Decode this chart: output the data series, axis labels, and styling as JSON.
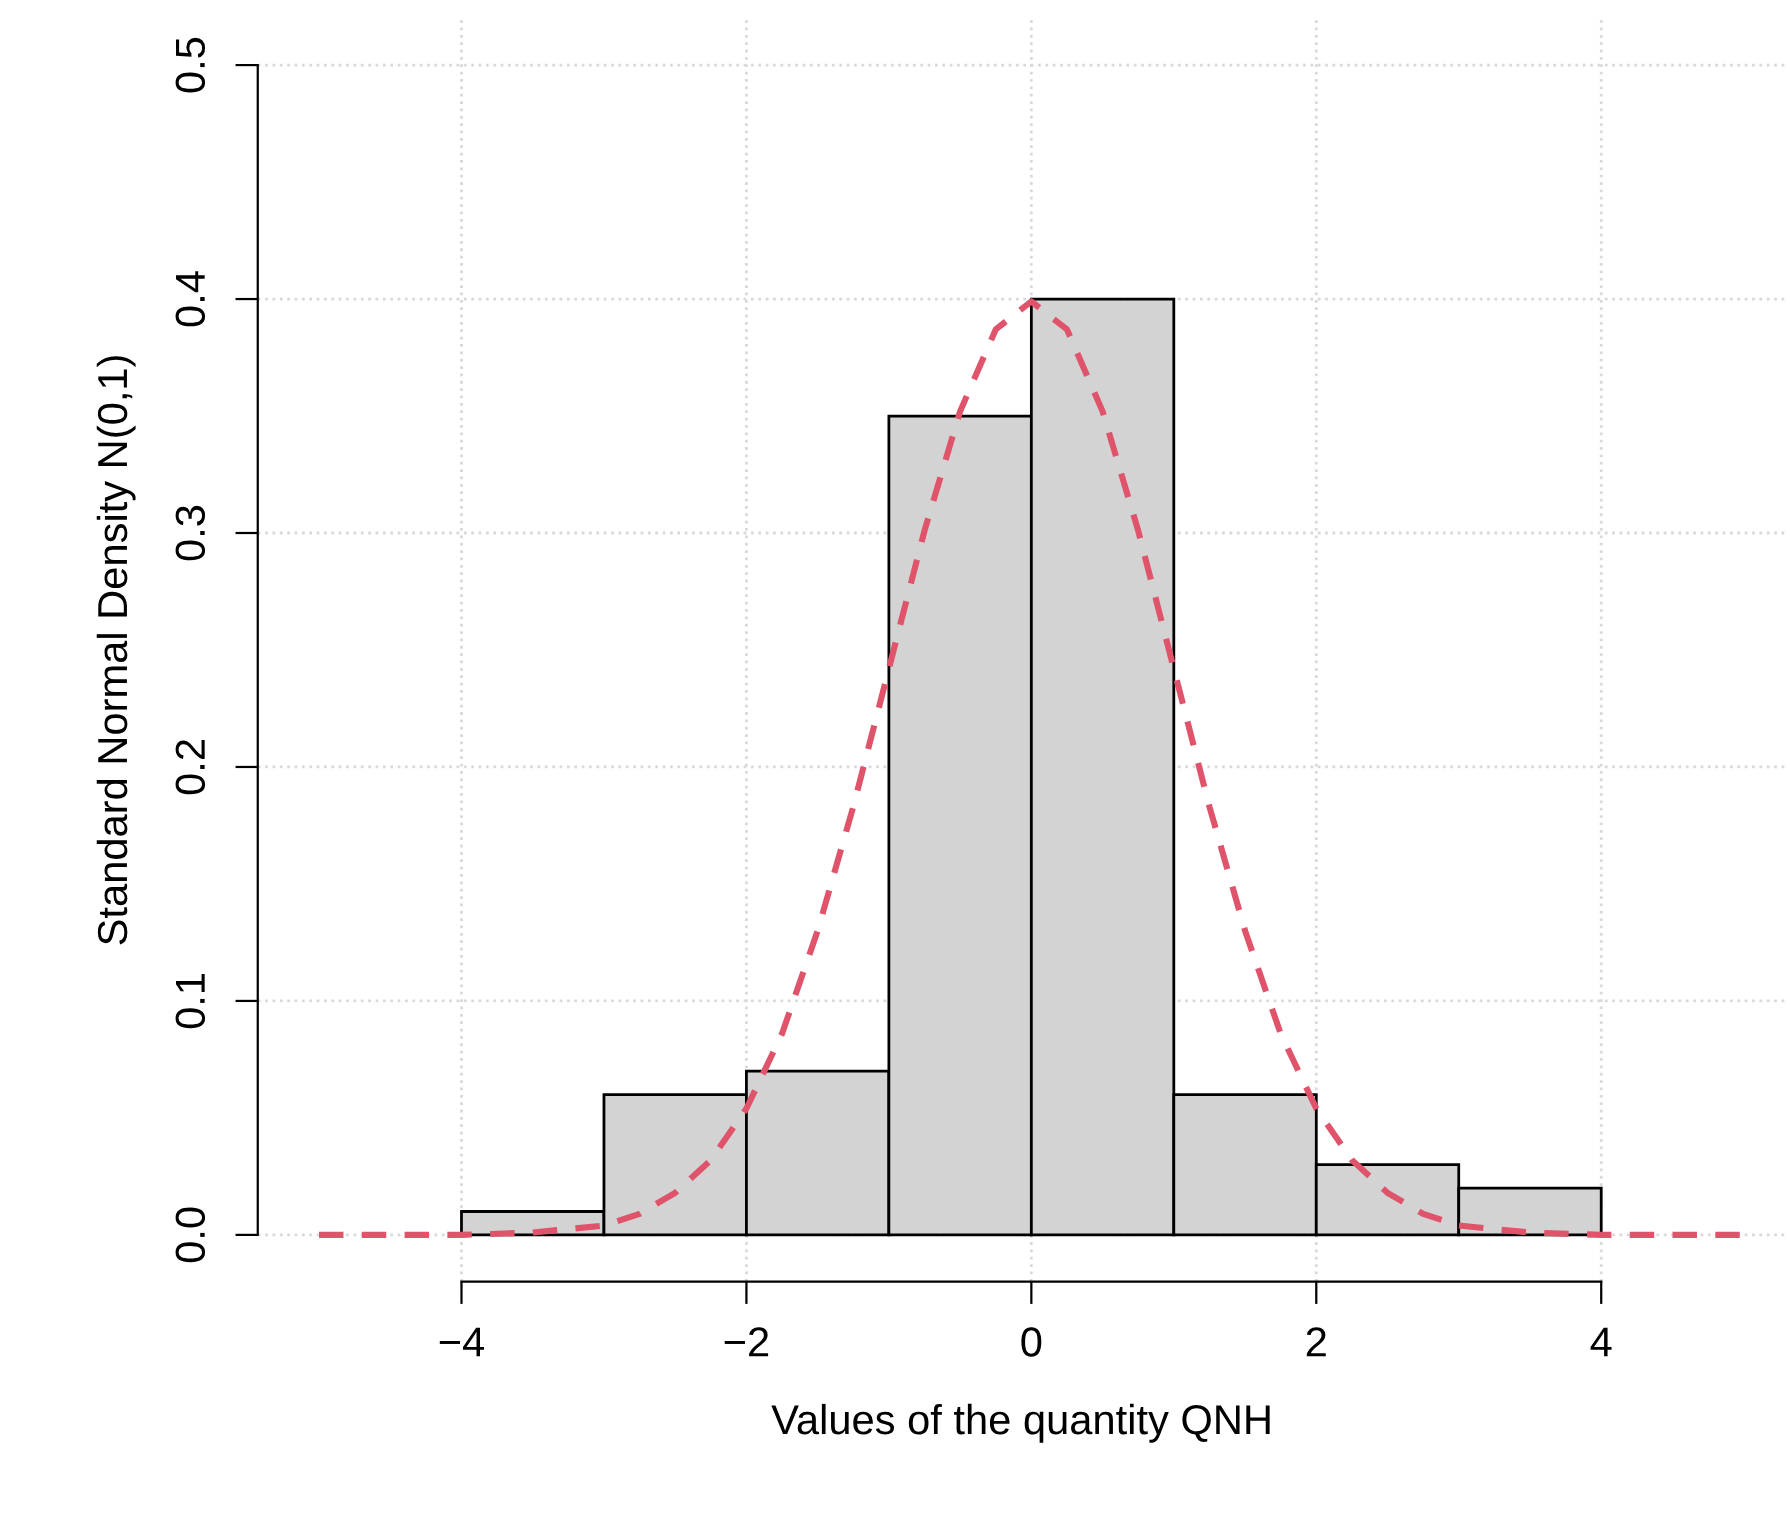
{
  "chart_data": [
    {
      "type": "histogram",
      "xlabel": "Values of the quantity QNH",
      "ylabel": "Standard Normal Density N(0,1)",
      "bins": [
        -4,
        -3,
        -2,
        -1,
        0,
        1,
        2,
        3,
        4
      ],
      "values": [
        0.01,
        0.06,
        0.07,
        0.35,
        0.4,
        0.06,
        0.03,
        0.02
      ],
      "color": "#d3d3d3",
      "xlim": [
        -5.43,
        5.3
      ],
      "ylim": [
        -0.02,
        0.52
      ],
      "xticks": [
        {
          "value": -4,
          "label": "−4"
        },
        {
          "value": -2,
          "label": "−2"
        },
        {
          "value": 0,
          "label": "0"
        },
        {
          "value": 2,
          "label": "2"
        },
        {
          "value": 4,
          "label": "4"
        }
      ],
      "yticks": [
        {
          "value": 0,
          "label": "0.0"
        },
        {
          "value": 0.1,
          "label": "0.1"
        },
        {
          "value": 0.2,
          "label": "0.2"
        },
        {
          "value": 0.3,
          "label": "0.3"
        },
        {
          "value": 0.4,
          "label": "0.4"
        },
        {
          "value": 0.5,
          "label": "0.5"
        }
      ],
      "grid": true,
      "series": [
        {
          "type": "line",
          "color": "#df536b",
          "line_style": "dashed",
          "x": [
            -5,
            -4.5,
            -4,
            -3.5,
            -3,
            -2.75,
            -2.5,
            -2.25,
            -2,
            -1.75,
            -1.5,
            -1.25,
            -1,
            -0.75,
            -0.5,
            -0.25,
            0,
            0.25,
            0.5,
            0.75,
            1,
            1.25,
            1.5,
            1.75,
            2,
            2.25,
            2.5,
            2.75,
            3,
            3.5,
            4,
            4.5,
            5
          ],
          "values": [
            0.0,
            0.0,
            0.0,
            0.001,
            0.004,
            0.009,
            0.018,
            0.032,
            0.054,
            0.086,
            0.13,
            0.183,
            0.242,
            0.301,
            0.352,
            0.387,
            0.399,
            0.387,
            0.352,
            0.301,
            0.242,
            0.183,
            0.13,
            0.086,
            0.054,
            0.032,
            0.018,
            0.009,
            0.004,
            0.001,
            0.0,
            0.0,
            0.0
          ]
        }
      ]
    }
  ]
}
